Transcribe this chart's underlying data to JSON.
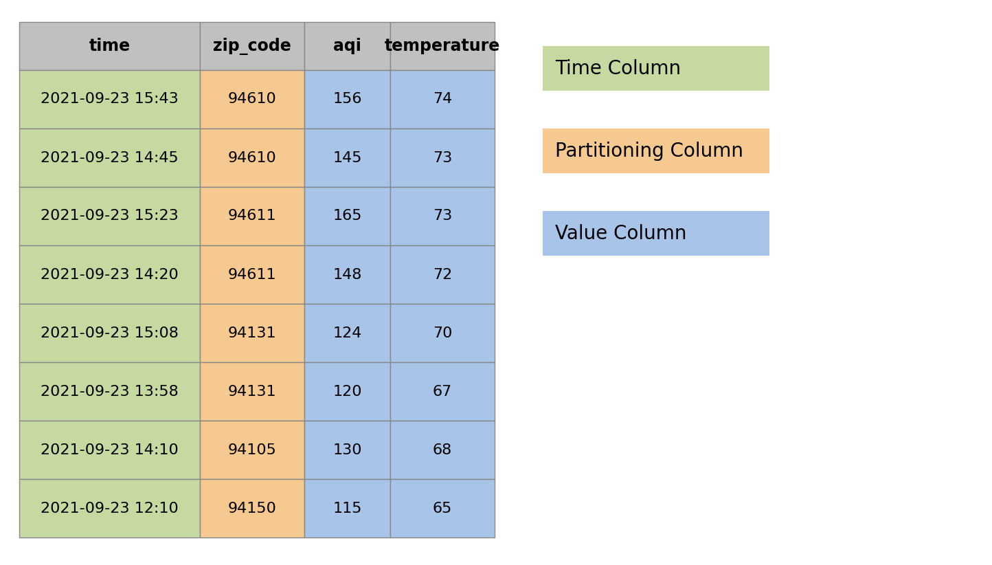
{
  "columns": [
    "time",
    "zip_code",
    "aqi",
    "temperature"
  ],
  "rows": [
    [
      "2021-09-23 15:43",
      "94610",
      "156",
      "74"
    ],
    [
      "2021-09-23 14:45",
      "94610",
      "145",
      "73"
    ],
    [
      "2021-09-23 15:23",
      "94611",
      "165",
      "73"
    ],
    [
      "2021-09-23 14:20",
      "94611",
      "148",
      "72"
    ],
    [
      "2021-09-23 15:08",
      "94131",
      "124",
      "70"
    ],
    [
      "2021-09-23 13:58",
      "94131",
      "120",
      "67"
    ],
    [
      "2021-09-23 14:10",
      "94105",
      "130",
      "68"
    ],
    [
      "2021-09-23 12:10",
      "94150",
      "115",
      "65"
    ]
  ],
  "header_color": "#c0c0c0",
  "header_text_color": "#000000",
  "cell_text_color": "#000000",
  "time_col_color": "#c5d9a0",
  "partition_col_color": "#f5c990",
  "value_col_color": "#a8c4e8",
  "legend_items": [
    {
      "label": "Time Column",
      "color": "#c5d9a0"
    },
    {
      "label": "Partitioning Column",
      "color": "#f5c990"
    },
    {
      "label": "Value Column",
      "color": "#a8c4e8"
    }
  ],
  "background_color": "#ffffff",
  "header_fontsize": 17,
  "cell_fontsize": 16,
  "legend_fontsize": 20
}
